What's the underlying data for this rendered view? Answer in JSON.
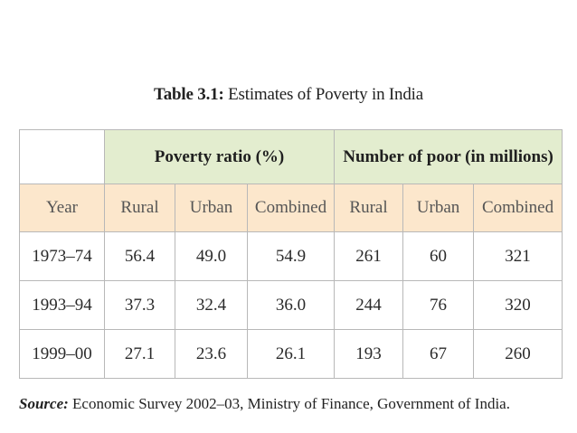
{
  "title": {
    "label": "Table 3.1:",
    "text": "Estimates of Poverty in India"
  },
  "table": {
    "groups": [
      "Poverty ratio (%)",
      "Number of poor (in millions)"
    ],
    "columns": [
      "Year",
      "Rural",
      "Urban",
      "Combined",
      "Rural",
      "Urban",
      "Combined"
    ],
    "rows": [
      [
        "1973–74",
        "56.4",
        "49.0",
        "54.9",
        "261",
        "60",
        "321"
      ],
      [
        "1993–94",
        "37.3",
        "32.4",
        "36.0",
        "244",
        "76",
        "320"
      ],
      [
        "1999–00",
        "27.1",
        "23.6",
        "26.1",
        "193",
        "67",
        "260"
      ]
    ]
  },
  "source": {
    "label": "Source:",
    "text": "Economic Survey 2002–03, Ministry of Finance, Government of India."
  },
  "colors": {
    "group_header_bg": "#e3edcf",
    "column_header_bg": "#fce7cc",
    "border": "#b8b8b8"
  }
}
